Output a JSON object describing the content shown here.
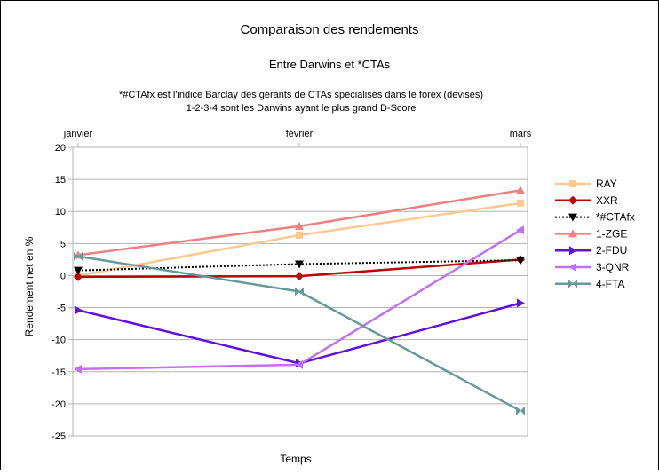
{
  "chart_data": {
    "type": "line",
    "title": "Comparaison des rendements",
    "subtitle": "Entre Darwins et *CTAs",
    "notes": [
      "*#CTAfx est l'indice Barclay des gérants de CTAs spécialisés dans le forex (devises)",
      "1-2-3-4 sont les Darwins ayant le plus grand D-Score"
    ],
    "xlabel": "Temps",
    "ylabel": "Rendement net en %",
    "categories": [
      "janvier",
      "février",
      "mars"
    ],
    "ylim": [
      -25,
      20
    ],
    "yticks": [
      20,
      15,
      10,
      5,
      0,
      -5,
      -10,
      -15,
      -20,
      -25
    ],
    "grid": "horizontal",
    "legend_position": "right",
    "series": [
      {
        "name": "RAY",
        "values": [
          0.0,
          6.3,
          11.3
        ],
        "color": "#ffc890",
        "marker": "square"
      },
      {
        "name": "XXR",
        "values": [
          -0.2,
          -0.1,
          2.5
        ],
        "color": "#c00000",
        "marker": "diamond"
      },
      {
        "name": "*#CTAfx",
        "values": [
          0.8,
          1.8,
          2.4
        ],
        "color": "#000000",
        "marker": "triangle-down",
        "dash": true
      },
      {
        "name": "1-ZGE",
        "values": [
          3.2,
          7.7,
          13.3
        ],
        "color": "#f08080",
        "marker": "triangle-up"
      },
      {
        "name": "2-FDU",
        "values": [
          -5.4,
          -13.7,
          -4.3
        ],
        "color": "#6010e0",
        "marker": "triangle-right"
      },
      {
        "name": "3-QNR",
        "values": [
          -14.6,
          -13.9,
          7.1
        ],
        "color": "#c070f0",
        "marker": "triangle-left"
      },
      {
        "name": "4-FTA",
        "values": [
          3.0,
          -2.5,
          -21.1
        ],
        "color": "#669999",
        "marker": "bowtie"
      }
    ]
  }
}
